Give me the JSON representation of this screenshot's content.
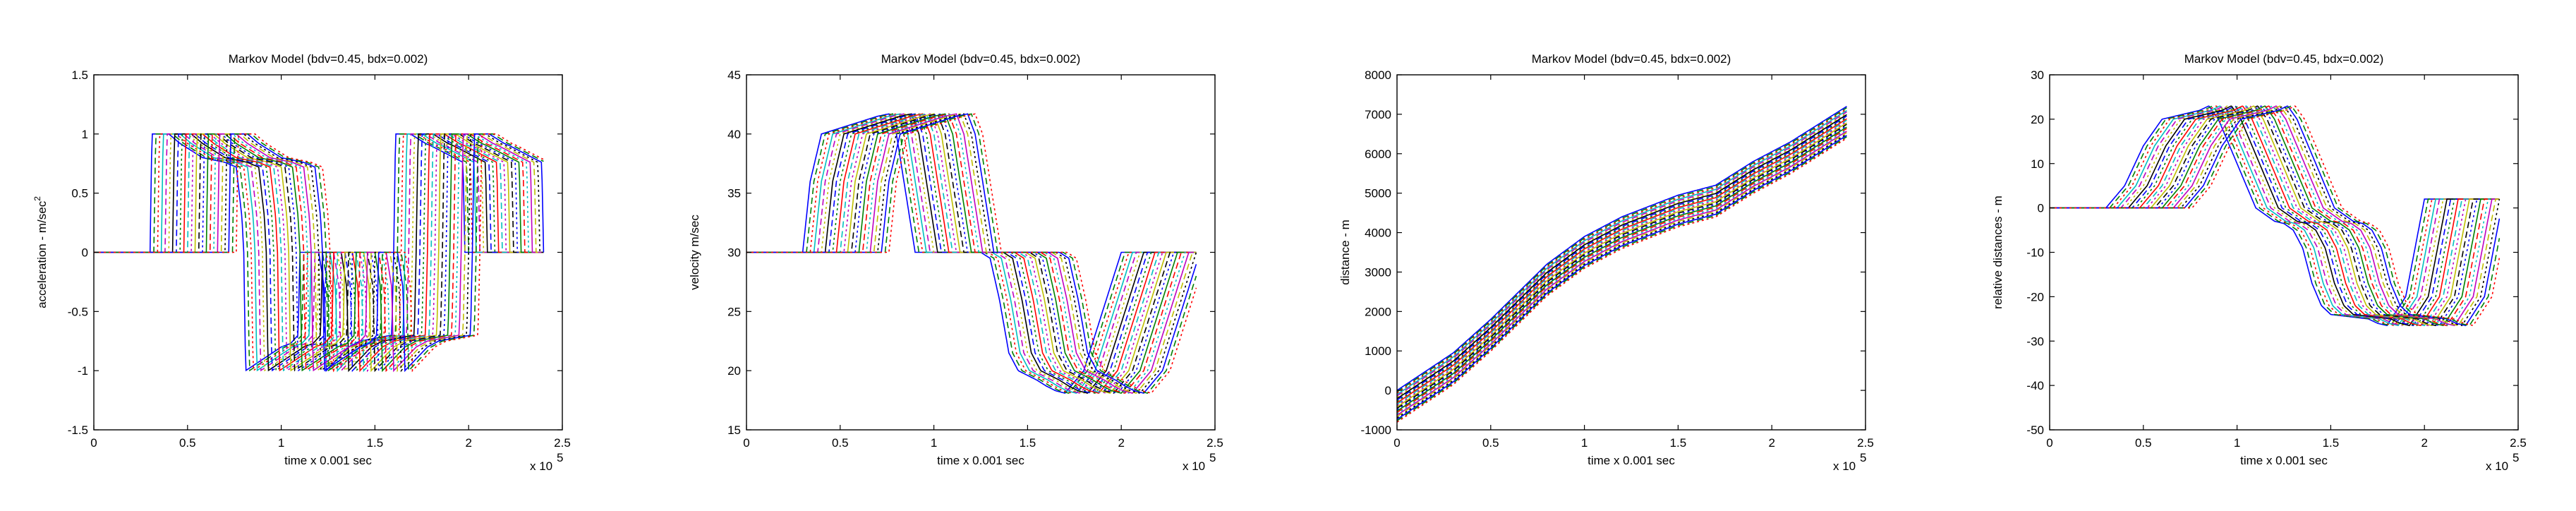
{
  "figure": {
    "palette": [
      "#0000ff",
      "#008000",
      "#ff0000",
      "#00bfbf",
      "#bf00bf",
      "#bfbf00",
      "#000000"
    ]
  },
  "chart_data": [
    {
      "type": "line",
      "title": "Markov Model (bdv=0.45, bdx=0.002)",
      "xlabel": "time x 0.001 sec",
      "ylabel": "acceleration - m/sec",
      "ylabel_superscript": "2",
      "x_multiplier_label": "x 10",
      "x_multiplier_exponent": "5",
      "xlim": [
        0,
        2.5
      ],
      "ylim": [
        -1.5,
        1.5
      ],
      "xticks": [
        0,
        0.5,
        1,
        1.5,
        2,
        2.5
      ],
      "xtick_labels": [
        "0",
        "0.5",
        "1",
        "1.5",
        "2",
        "2.5"
      ],
      "yticks": [
        -1.5,
        -1,
        -0.5,
        0,
        0.5,
        1,
        1.5
      ],
      "ytick_labels": [
        "-1.5",
        "-1",
        "-0.5",
        "0",
        "0.5",
        "1",
        "1.5"
      ],
      "grid": false,
      "n_series": 24,
      "series_shift": 0.02,
      "x_end": 2.4,
      "base_curve": {
        "x": [
          0,
          0.3,
          0.31,
          0.4,
          0.46,
          0.58,
          0.7,
          0.76,
          0.79,
          0.8,
          0.81,
          1.0,
          1.05,
          1.09,
          1.1,
          1.12,
          1.2,
          1.23,
          1.24,
          1.36,
          1.42,
          1.59,
          1.6,
          1.61,
          1.69,
          1.77,
          1.8,
          1.97,
          1.98,
          2.05,
          2.2,
          2.4
        ],
        "y": [
          0,
          0,
          1.0,
          1.0,
          0.92,
          0.8,
          0.76,
          0.72,
          0.3,
          0,
          -1.0,
          -0.8,
          -0.77,
          -0.7,
          0,
          0,
          0,
          -0.3,
          -1.0,
          -0.8,
          -0.75,
          -0.7,
          0,
          1.0,
          1.0,
          0.92,
          0.9,
          0.76,
          0,
          0,
          0,
          0
        ]
      }
    },
    {
      "type": "line",
      "title": "Markov Model (bdv=0.45, bdx=0.002)",
      "xlabel": "time x 0.001 sec",
      "ylabel": "velocity m/sec",
      "x_multiplier_label": "x 10",
      "x_multiplier_exponent": "5",
      "xlim": [
        0,
        2.5
      ],
      "ylim": [
        15,
        45
      ],
      "xticks": [
        0,
        0.5,
        1,
        1.5,
        2,
        2.5
      ],
      "xtick_labels": [
        "0",
        "0.5",
        "1",
        "1.5",
        "2",
        "2.5"
      ],
      "yticks": [
        15,
        20,
        25,
        30,
        35,
        40,
        45
      ],
      "ytick_labels": [
        "15",
        "20",
        "25",
        "30",
        "35",
        "40",
        "45"
      ],
      "grid": false,
      "n_series": 24,
      "series_shift": 0.02,
      "x_end": 2.4,
      "base_curve": {
        "x": [
          0,
          0.3,
          0.34,
          0.4,
          0.5,
          0.6,
          0.7,
          0.76,
          0.8,
          0.84,
          0.9,
          1.0,
          1.05,
          1.1,
          1.2,
          1.25,
          1.3,
          1.35,
          1.4,
          1.45,
          1.5,
          1.55,
          1.6,
          1.65,
          1.7,
          1.8,
          1.9,
          2.0,
          2.4
        ],
        "y": [
          30,
          30,
          36,
          40,
          40.5,
          41,
          41.5,
          41.7,
          40,
          36,
          30,
          30,
          30,
          30,
          30,
          30,
          29.5,
          26,
          21.5,
          20,
          19.6,
          19.2,
          18.7,
          18.3,
          18.1,
          20,
          25,
          30,
          30
        ]
      }
    },
    {
      "type": "line",
      "title": "Markov Model (bdv=0.45, bdx=0.002)",
      "xlabel": "time x 0.001 sec",
      "ylabel": "distance - m",
      "x_multiplier_label": "x 10",
      "x_multiplier_exponent": "5",
      "xlim": [
        0,
        2.5
      ],
      "ylim": [
        -1000,
        8000
      ],
      "xticks": [
        0,
        0.5,
        1,
        1.5,
        2,
        2.5
      ],
      "xtick_labels": [
        "0",
        "0.5",
        "1",
        "1.5",
        "2",
        "2.5"
      ],
      "yticks": [
        -1000,
        0,
        1000,
        2000,
        3000,
        4000,
        5000,
        6000,
        7000,
        8000
      ],
      "ytick_labels": [
        "-1000",
        "0",
        "1000",
        "2000",
        "3000",
        "4000",
        "5000",
        "6000",
        "7000",
        "8000"
      ],
      "grid": false,
      "n_series": 24,
      "series_offset_start": 0,
      "series_offset_step": -35,
      "x_end": 2.4,
      "base_curve": {
        "x": [
          0,
          0.3,
          0.5,
          0.8,
          1.0,
          1.2,
          1.5,
          1.7,
          1.9,
          2.1,
          2.4
        ],
        "y": [
          0,
          950,
          1800,
          3200,
          3900,
          4400,
          4950,
          5200,
          5800,
          6300,
          7200
        ]
      }
    },
    {
      "type": "line",
      "title": "Markov Model (bdv=0.45, bdx=0.002)",
      "xlabel": "time x 0.001 sec",
      "ylabel": "relative distances - m",
      "x_multiplier_label": "x 10",
      "x_multiplier_exponent": "5",
      "xlim": [
        0,
        2.5
      ],
      "ylim": [
        -50,
        30
      ],
      "xticks": [
        0,
        0.5,
        1,
        1.5,
        2,
        2.5
      ],
      "xtick_labels": [
        "0",
        "0.5",
        "1",
        "1.5",
        "2",
        "2.5"
      ],
      "yticks": [
        -50,
        -40,
        -30,
        -20,
        -10,
        0,
        10,
        20,
        30
      ],
      "ytick_labels": [
        "-50",
        "-40",
        "-30",
        "-20",
        "-10",
        "0",
        "10",
        "20",
        "30"
      ],
      "grid": false,
      "n_series": 24,
      "series_shift": 0.02,
      "x_end": 2.4,
      "base_curve": {
        "x": [
          0,
          0.3,
          0.4,
          0.5,
          0.6,
          0.7,
          0.8,
          0.85,
          0.9,
          1.0,
          1.1,
          1.2,
          1.25,
          1.3,
          1.35,
          1.4,
          1.45,
          1.5,
          1.6,
          1.7,
          1.75,
          1.8,
          1.9,
          2.0,
          2.4
        ],
        "y": [
          0,
          0,
          5,
          14,
          20,
          21,
          22,
          23,
          20,
          10,
          0,
          -3,
          -3.5,
          -5,
          -9,
          -17,
          -22,
          -24,
          -24.5,
          -25,
          -26,
          -26.5,
          -20,
          2,
          2
        ]
      }
    }
  ]
}
